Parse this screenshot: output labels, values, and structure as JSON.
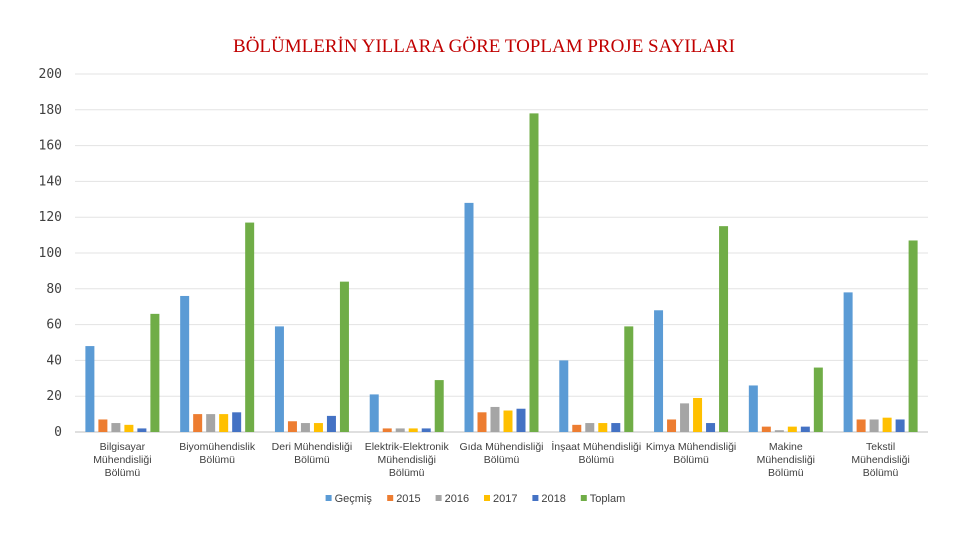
{
  "chart_data": {
    "type": "bar",
    "title": "BÖLÜMLERİN YILLARA GÖRE TOPLAM PROJE SAYILARI",
    "xlabel": "",
    "ylabel": "",
    "ylim": [
      0,
      200
    ],
    "yticks": [
      0,
      20,
      40,
      60,
      80,
      100,
      120,
      140,
      160,
      180,
      200
    ],
    "grid": true,
    "legend_position": "bottom",
    "categories": [
      [
        "Bilgisayar",
        "Mühendisliği",
        "Bölümü"
      ],
      [
        "Biyomühendislik",
        "Bölümü"
      ],
      [
        "Deri Mühendisliği",
        "Bölümü"
      ],
      [
        "Elektrik-Elektronik",
        "Mühendisliği",
        "Bölümü"
      ],
      [
        "Gıda Mühendisliği",
        "Bölümü"
      ],
      [
        "İnşaat Mühendisliği",
        "Bölümü"
      ],
      [
        "Kimya Mühendisliği",
        "Bölümü"
      ],
      [
        "Makine",
        "Mühendisliği",
        "Bölümü"
      ],
      [
        "Tekstil",
        "Mühendisliği",
        "Bölümü"
      ]
    ],
    "series": [
      {
        "name": "Geçmiş",
        "color": "#5b9bd5",
        "values": [
          48,
          76,
          59,
          21,
          128,
          40,
          68,
          26,
          78
        ]
      },
      {
        "name": "2015",
        "color": "#ed7d31",
        "values": [
          7,
          10,
          6,
          2,
          11,
          4,
          7,
          3,
          7
        ]
      },
      {
        "name": "2016",
        "color": "#a5a5a5",
        "values": [
          5,
          10,
          5,
          2,
          14,
          5,
          16,
          1,
          7
        ]
      },
      {
        "name": "2017",
        "color": "#ffc000",
        "values": [
          4,
          10,
          5,
          2,
          12,
          5,
          19,
          3,
          8
        ]
      },
      {
        "name": "2018",
        "color": "#4472c4",
        "values": [
          2,
          11,
          9,
          2,
          13,
          5,
          5,
          3,
          7
        ]
      },
      {
        "name": "Toplam",
        "color": "#70ad47",
        "values": [
          66,
          117,
          84,
          29,
          178,
          59,
          115,
          36,
          107
        ]
      }
    ]
  }
}
